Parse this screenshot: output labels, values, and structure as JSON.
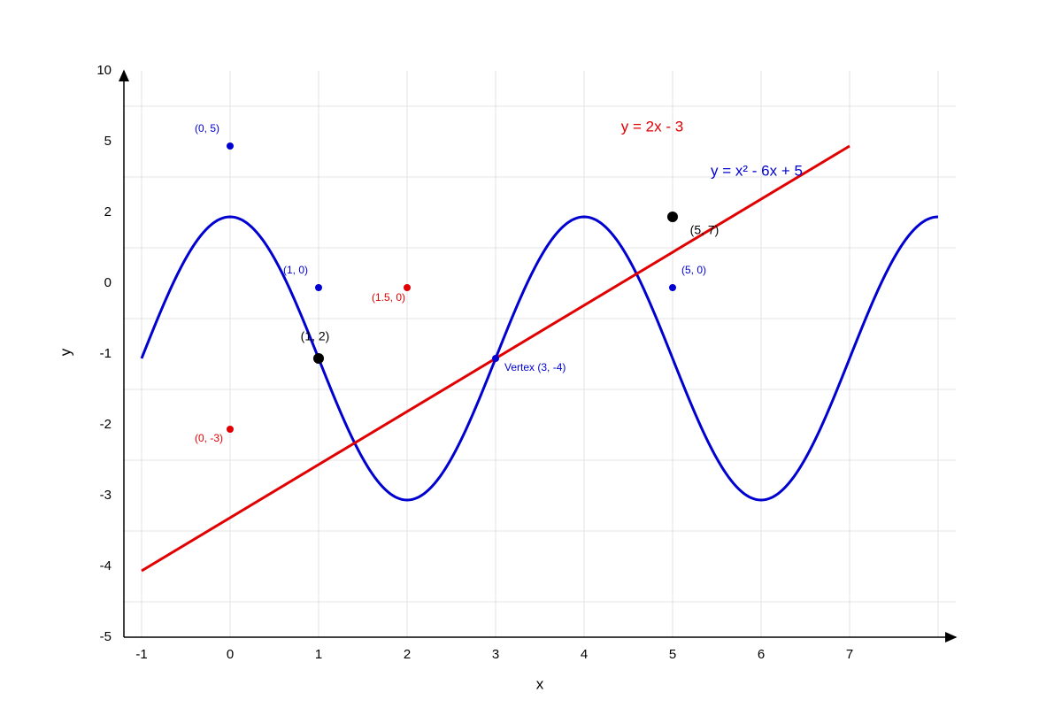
{
  "axes": {
    "x_label": "x",
    "y_label": "y",
    "x_ticks": [
      "-1",
      "0",
      "1",
      "2",
      "3",
      "4",
      "5",
      "6",
      "7"
    ],
    "y_ticks": [
      "10",
      "5",
      "2",
      "0",
      "-1",
      "-2",
      "-3",
      "-4",
      "-5"
    ]
  },
  "curves": [
    {
      "label": "y = 2x - 3"
    },
    {
      "label": "y = x² - 6x + 5"
    }
  ],
  "points": [
    {
      "label": "(0, 5)"
    },
    {
      "label": "(1, 0)"
    },
    {
      "label": "(1.5, 0)"
    },
    {
      "label": "(0, -3)"
    },
    {
      "label": "(5, 0)"
    },
    {
      "label": "Vertex (3, -4)"
    },
    {
      "label": "(1, 2)"
    },
    {
      "label": "(5, 7)"
    }
  ]
}
